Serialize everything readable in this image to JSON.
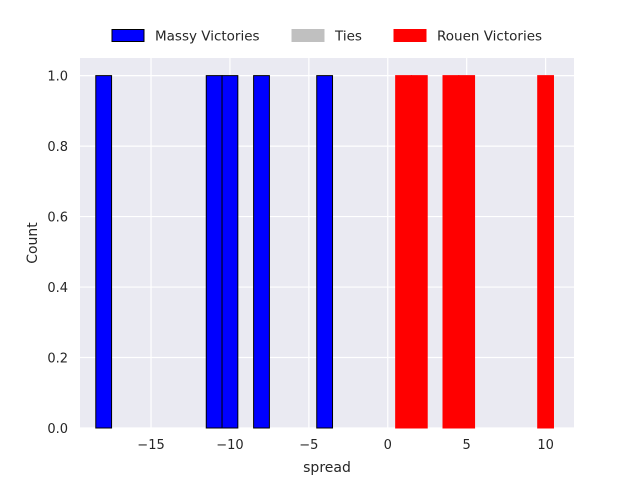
{
  "chart_data": {
    "type": "bar",
    "title": "",
    "xlabel": "spread",
    "ylabel": "Count",
    "xlim": [
      -19.5,
      11.8
    ],
    "ylim": [
      0,
      1.05
    ],
    "xticks": [
      -15,
      -10,
      -5,
      0,
      5,
      10
    ],
    "yticks": [
      0.0,
      0.2,
      0.4,
      0.6,
      0.8,
      1.0
    ],
    "grid": true,
    "legend_position": "top-center",
    "series": [
      {
        "name": "Massy Victories",
        "color": "#0000ff",
        "edgecolor": "#000000",
        "bins": [
          {
            "x0": -18.5,
            "x1": -17.5,
            "count": 1
          },
          {
            "x0": -11.5,
            "x1": -10.5,
            "count": 1
          },
          {
            "x0": -10.5,
            "x1": -9.5,
            "count": 1
          },
          {
            "x0": -8.5,
            "x1": -7.5,
            "count": 1
          },
          {
            "x0": -4.5,
            "x1": -3.5,
            "count": 1
          }
        ]
      },
      {
        "name": "Ties",
        "color": "#c0c0c0",
        "edgecolor": "#c0c0c0",
        "bins": []
      },
      {
        "name": "Rouen Victories",
        "color": "#ff0000",
        "edgecolor": "#ff0000",
        "bins": [
          {
            "x0": 0.5,
            "x1": 1.5,
            "count": 1
          },
          {
            "x0": 1.5,
            "x1": 2.5,
            "count": 1
          },
          {
            "x0": 3.5,
            "x1": 4.5,
            "count": 1
          },
          {
            "x0": 4.5,
            "x1": 5.5,
            "count": 1
          },
          {
            "x0": 9.5,
            "x1": 10.5,
            "count": 1
          }
        ]
      }
    ]
  }
}
